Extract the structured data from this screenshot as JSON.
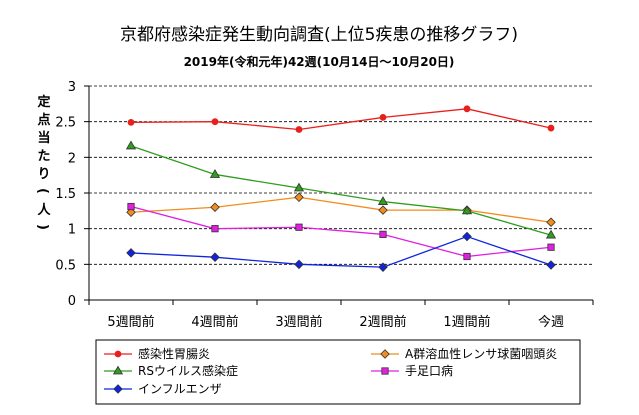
{
  "chart_data": {
    "type": "line",
    "title": "京都府感染症発生動向調査(上位5疾患の推移グラフ)",
    "subtitle": "2019年(令和元年)42週(10月14日〜10月20日)",
    "xlabel": "",
    "ylabel": "定点当たり(人)",
    "categories": [
      "5週間前",
      "4週間前",
      "3週間前",
      "2週間前",
      "1週間前",
      "今週"
    ],
    "ylim": [
      0,
      3
    ],
    "yticks": [
      "0",
      "0.5",
      "1",
      "1.5",
      "2",
      "2.5",
      "3"
    ],
    "grid": "horizontal dashed",
    "legend_position": "bottom",
    "series": [
      {
        "name": "感染性胃腸炎",
        "color": "#e8201c",
        "marker": "circle",
        "values": [
          2.49,
          2.5,
          2.39,
          2.56,
          2.68,
          2.41
        ]
      },
      {
        "name": "A群溶血性レンサ球菌咽頭炎",
        "color": "#f28c1c",
        "marker": "diamond",
        "values": [
          1.23,
          1.3,
          1.44,
          1.26,
          1.26,
          1.09
        ]
      },
      {
        "name": "RSウイルス感染症",
        "color": "#2f9e1e",
        "marker": "triangle",
        "values": [
          2.16,
          1.76,
          1.57,
          1.38,
          1.25,
          0.91
        ]
      },
      {
        "name": "手足口病",
        "color": "#e020e0",
        "marker": "square",
        "values": [
          1.31,
          1.0,
          1.02,
          0.92,
          0.61,
          0.74
        ]
      },
      {
        "name": "インフルエンザ",
        "color": "#1024e0",
        "marker": "diamond",
        "values": [
          0.66,
          0.6,
          0.5,
          0.46,
          0.89,
          0.49
        ]
      }
    ]
  }
}
